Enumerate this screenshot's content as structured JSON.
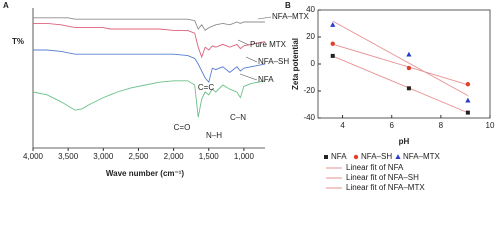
{
  "chart_data": [
    {
      "type": "line",
      "panel_label": "A",
      "ylabel": "T%",
      "xlabel": "Wave number (cm⁻¹)",
      "xlim": [
        4000,
        700
      ],
      "xticks": [
        {
          "value": 4000,
          "label": "4,000"
        },
        {
          "value": 3500,
          "label": "3,500"
        },
        {
          "value": 3000,
          "label": "3,000"
        },
        {
          "value": 2500,
          "label": "2,500"
        },
        {
          "value": 2000,
          "label": "2,000"
        },
        {
          "value": 1500,
          "label": "1,500"
        },
        {
          "value": 1000,
          "label": "1,000"
        }
      ],
      "ylim": [
        0,
        100
      ],
      "x": [
        4000,
        3800,
        3600,
        3500,
        3400,
        3300,
        3200,
        3000,
        2900,
        2800,
        2600,
        2400,
        2200,
        2000,
        1800,
        1700,
        1650,
        1600,
        1550,
        1500,
        1450,
        1400,
        1300,
        1200,
        1100,
        1050,
        1000,
        900,
        800,
        700
      ],
      "series": [
        {
          "name": "NFA–MTX",
          "color": "#8c8c8c",
          "values": [
            93,
            93,
            93,
            93,
            92,
            92,
            92,
            92,
            92,
            92,
            92,
            92,
            92,
            92,
            92,
            91,
            85,
            88,
            84,
            86,
            87,
            88,
            89,
            88,
            90,
            89,
            90,
            90,
            90,
            90
          ]
        },
        {
          "name": "Pure MTX",
          "color": "#e0607a",
          "values": [
            89,
            89,
            88,
            87,
            86,
            86,
            86,
            86,
            85,
            85,
            85,
            85,
            85,
            84,
            84,
            82,
            72,
            65,
            72,
            70,
            73,
            72,
            74,
            72,
            74,
            71,
            73,
            74,
            75,
            76
          ]
        },
        {
          "name": "NFA–SH",
          "color": "#5a7fd0",
          "values": [
            70,
            70,
            69,
            68,
            67,
            67,
            67,
            67,
            67,
            67,
            67,
            67,
            67,
            67,
            66,
            64,
            60,
            55,
            50,
            47,
            57,
            56,
            58,
            54,
            58,
            55,
            57,
            58,
            59,
            60
          ]
        },
        {
          "name": "NFA",
          "color": "#6cc08a",
          "values": [
            40,
            38,
            33,
            30,
            27,
            28,
            31,
            36,
            38,
            40,
            43,
            45,
            47,
            48,
            48,
            45,
            22,
            35,
            40,
            38,
            42,
            40,
            45,
            42,
            40,
            36,
            44,
            46,
            47,
            48
          ]
        }
      ],
      "annotations": [
        "C=O",
        "C=C",
        "N–H",
        "C–N"
      ]
    },
    {
      "type": "scatter",
      "panel_label": "B",
      "ylabel": "Zeta potential",
      "xlabel": "pH",
      "xlim": [
        3,
        10
      ],
      "xticks": [
        4,
        6,
        8,
        10
      ],
      "ylim": [
        -40,
        40
      ],
      "yticks": [
        40,
        20,
        0,
        -20,
        -40
      ],
      "x": [
        3.6,
        6.7,
        9.1
      ],
      "fit_color": "#e89090",
      "series": [
        {
          "name": "NFA",
          "fit_name": "Linear fit of NFA",
          "color": "#222222",
          "marker": "square",
          "values": [
            6,
            -18,
            -36
          ]
        },
        {
          "name": "NFA–SH",
          "fit_name": "Linear fit of NFA–SH",
          "color": "#e0402a",
          "marker": "circle",
          "values": [
            15,
            -3,
            -15
          ]
        },
        {
          "name": "NFA–MTX",
          "fit_name": "Linear fit of NFA–MTX",
          "color": "#2a3cc8",
          "marker": "triangle",
          "values": [
            29,
            7,
            -27
          ]
        }
      ]
    }
  ]
}
